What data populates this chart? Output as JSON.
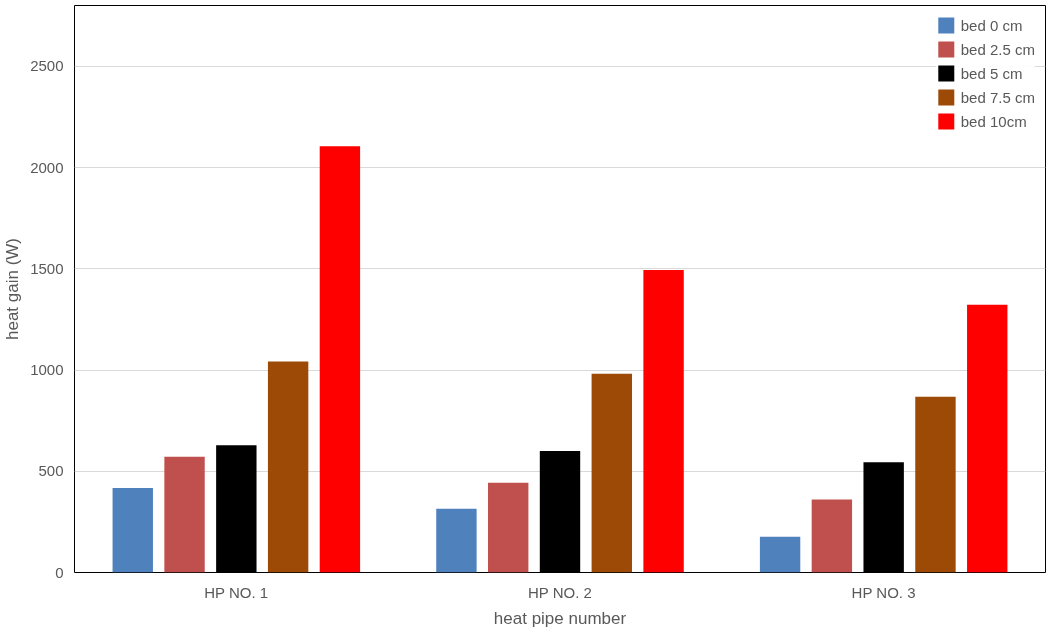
{
  "chart_data": {
    "type": "bar",
    "xlabel": "heat pipe number",
    "ylabel": "heat gain (W)",
    "categories": [
      "HP NO. 1",
      "HP NO. 2",
      "HP NO. 3"
    ],
    "series": [
      {
        "name": "bed 0 cm",
        "color": "#4f81bd",
        "values": [
          417,
          315,
          176
        ]
      },
      {
        "name": "bed 2.5 cm",
        "color": "#c0504d",
        "values": [
          571,
          443,
          360
        ]
      },
      {
        "name": "bed 5 cm",
        "color": "#000000",
        "values": [
          629,
          600,
          544
        ]
      },
      {
        "name": "bed 7.5 cm",
        "color": "#9c4a06",
        "values": [
          1042,
          981,
          868
        ]
      },
      {
        "name": "bed 10cm",
        "color": "#ff0000",
        "values": [
          2105,
          1494,
          1322
        ]
      }
    ],
    "ylim": [
      0,
      2800
    ],
    "yticks": [
      0,
      500,
      1000,
      1500,
      2000,
      2500
    ],
    "grid": "y",
    "legend": "top right"
  }
}
